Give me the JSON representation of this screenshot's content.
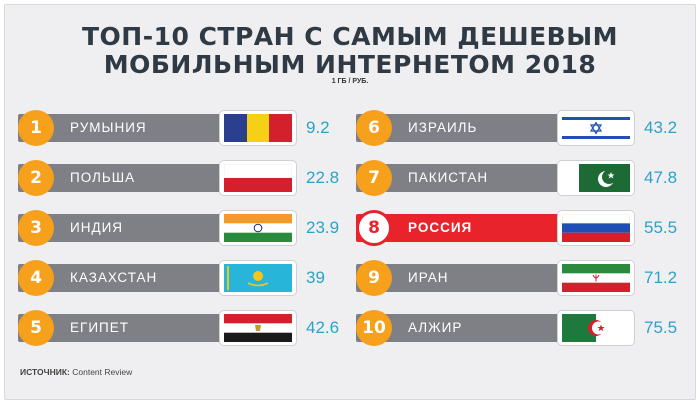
{
  "title_line1": "ТОП-10 СТРАН С САМЫМ ДЕШЕВЫМ",
  "title_line2": "МОБИЛЬНЫМ ИНТЕРНЕТОМ 2018",
  "unit": "1 ГБ / РУБ.",
  "source_label": "ИСТОЧНИК:",
  "source_value": "Content Review",
  "colors": {
    "circle": "#f7a01c",
    "bar": "#7e8086",
    "highlight": "#e8232b",
    "value": "#2aa3c8",
    "title": "#2f3a45"
  },
  "chart_data": {
    "type": "table",
    "title": "ТОП-10 СТРАН С САМЫМ ДЕШЕВЫМ МОБИЛЬНЫМ ИНТЕРНЕТОМ 2018",
    "subtitle": "1 ГБ / РУБ.",
    "highlight_rank": 8,
    "rows": [
      {
        "rank": "1",
        "country": "РУМЫНИЯ",
        "value": "9.2",
        "flag": "romania-flag-icon"
      },
      {
        "rank": "2",
        "country": "ПОЛЬША",
        "value": "22.8",
        "flag": "poland-flag-icon"
      },
      {
        "rank": "3",
        "country": "ИНДИЯ",
        "value": "23.9",
        "flag": "india-flag-icon"
      },
      {
        "rank": "4",
        "country": "КАЗАХСТАН",
        "value": "39",
        "flag": "kazakhstan-flag-icon"
      },
      {
        "rank": "5",
        "country": "ЕГИПЕТ",
        "value": "42.6",
        "flag": "egypt-flag-icon"
      },
      {
        "rank": "6",
        "country": "ИЗРАИЛЬ",
        "value": "43.2",
        "flag": "israel-flag-icon"
      },
      {
        "rank": "7",
        "country": "ПАКИСТАН",
        "value": "47.8",
        "flag": "pakistan-flag-icon"
      },
      {
        "rank": "8",
        "country": "РОССИЯ",
        "value": "55.5",
        "flag": "russia-flag-icon"
      },
      {
        "rank": "9",
        "country": "ИРАН",
        "value": "71.2",
        "flag": "iran-flag-icon"
      },
      {
        "rank": "10",
        "country": "АЛЖИР",
        "value": "75.5",
        "flag": "algeria-flag-icon"
      }
    ]
  }
}
